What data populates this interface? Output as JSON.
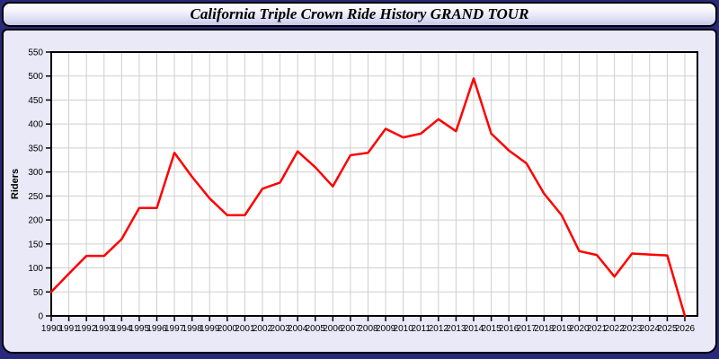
{
  "window": {
    "title": "California Triple Crown Ride History GRAND TOUR"
  },
  "colors": {
    "page_background": "#28287C",
    "panel_background": "#E9E9F8",
    "plot_background": "#FFFFFF",
    "grid": "#CFCFCF",
    "axis": "#000000",
    "line": "#FF0000",
    "title_gradient_top": "#FFFFFF",
    "title_gradient_bottom": "#C6C6EA"
  },
  "chart_data": {
    "type": "line",
    "title": "California Triple Crown Ride History GRAND TOUR",
    "xlabel": "",
    "ylabel": "Riders",
    "x": [
      1990,
      1991,
      1992,
      1993,
      1994,
      1995,
      1996,
      1997,
      1998,
      1999,
      2000,
      2001,
      2002,
      2003,
      2004,
      2005,
      2006,
      2007,
      2008,
      2009,
      2010,
      2011,
      2012,
      2013,
      2014,
      2015,
      2016,
      2017,
      2018,
      2019,
      2020,
      2021,
      2022,
      2023,
      2024,
      2025,
      2026
    ],
    "series": [
      {
        "name": "Riders",
        "color": "#FF0000",
        "values": [
          50,
          88,
          125,
          125,
          160,
          225,
          225,
          340,
          290,
          245,
          210,
          210,
          265,
          278,
          343,
          310,
          270,
          335,
          340,
          390,
          372,
          380,
          410,
          385,
          495,
          380,
          345,
          318,
          255,
          210,
          135,
          127,
          82,
          130,
          128,
          126,
          0
        ]
      }
    ],
    "ylim": [
      0,
      550
    ],
    "ytick_step": 50,
    "grid": true,
    "legend_position": "none"
  }
}
